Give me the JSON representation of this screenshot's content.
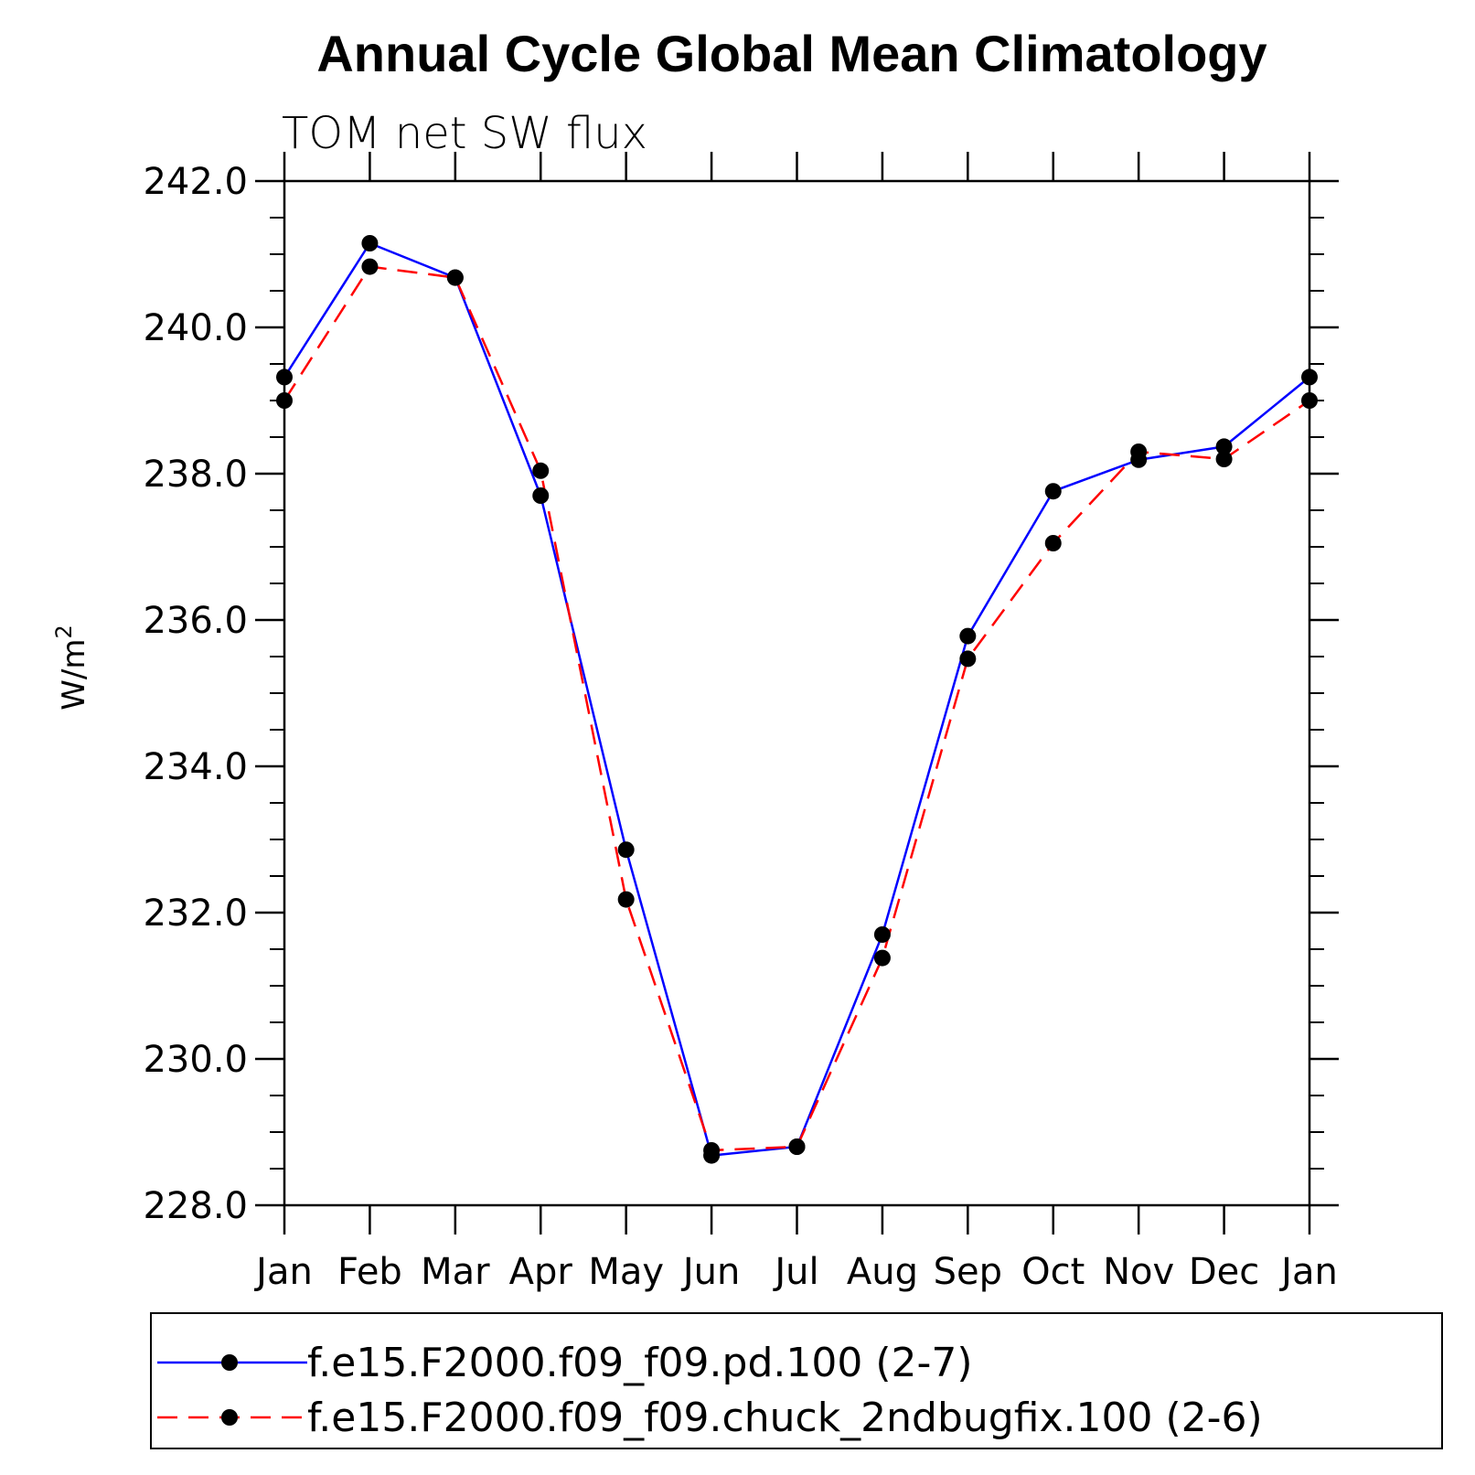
{
  "chart_data": {
    "type": "line",
    "title": "Annual Cycle Global Mean Climatology",
    "subtitle": "TOM net SW flux",
    "ylabel": "W/m",
    "ylabel_sup": "2",
    "xlabel": "",
    "categories": [
      "Jan",
      "Feb",
      "Mar",
      "Apr",
      "May",
      "Jun",
      "Jul",
      "Aug",
      "Sep",
      "Oct",
      "Nov",
      "Dec",
      "Jan"
    ],
    "ylim": [
      228.0,
      242.0
    ],
    "yticks": [
      "228.0",
      "230.0",
      "232.0",
      "234.0",
      "236.0",
      "238.0",
      "240.0",
      "242.0"
    ],
    "ytick_values": [
      228,
      230,
      232,
      234,
      236,
      238,
      240,
      242
    ],
    "yminor_step": 0.5,
    "grid": false,
    "legend_position": "bottom",
    "series": [
      {
        "name": "f.e15.F2000.f09_f09.pd.100 (2-7)",
        "color": "#0000ff",
        "dash": "solid",
        "values": [
          239.32,
          241.15,
          240.68,
          237.7,
          232.86,
          228.68,
          228.8,
          231.7,
          235.78,
          237.76,
          238.19,
          238.37,
          239.32
        ]
      },
      {
        "name": "f.e15.F2000.f09_f09.chuck_2ndbugfix.100 (2-6)",
        "color": "#ff0000",
        "dash": "dashed",
        "values": [
          239.0,
          240.83,
          240.68,
          238.04,
          232.18,
          228.75,
          228.8,
          231.38,
          235.47,
          237.05,
          238.3,
          238.2,
          239.0
        ]
      }
    ]
  }
}
